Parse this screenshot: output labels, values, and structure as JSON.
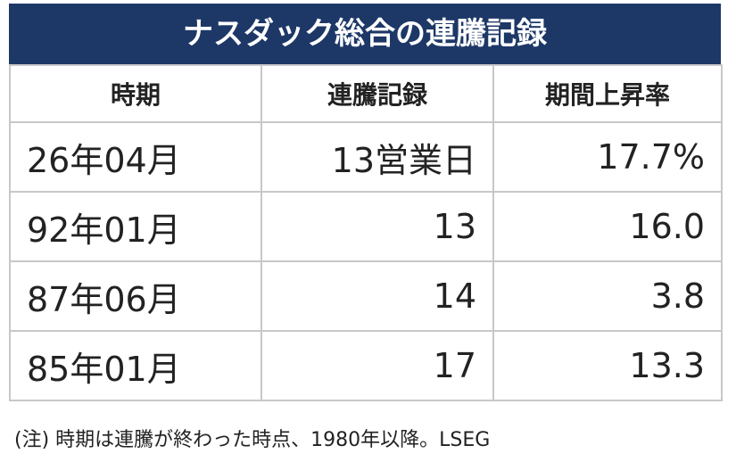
{
  "header": {
    "title": "ナスダック総合の連騰記録"
  },
  "table": {
    "columns": [
      "時期",
      "連騰記録",
      "期間上昇率"
    ],
    "rows": [
      [
        "26年04月",
        "13営業日",
        "17.7%"
      ],
      [
        "92年01月",
        "13",
        "16.0"
      ],
      [
        "87年06月",
        "14",
        "3.8"
      ],
      [
        "85年01月",
        "17",
        "13.3"
      ]
    ]
  },
  "footnote": "(注) 時期は連騰が終わった時点、1980年以降。LSEG"
}
